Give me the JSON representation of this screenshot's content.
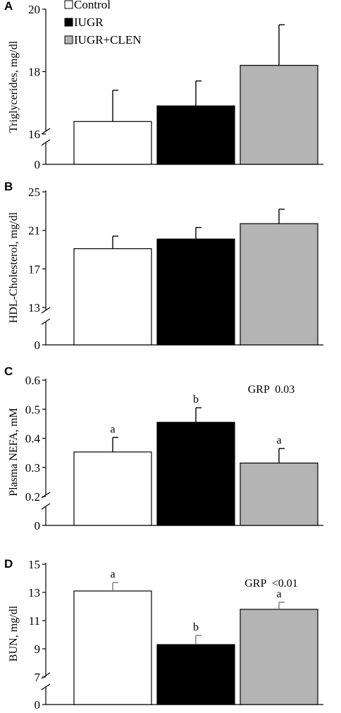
{
  "legend": [
    {
      "label": "Control",
      "color": "#ffffff"
    },
    {
      "label": "IUGR",
      "color": "#000000"
    },
    {
      "label": "IUGR+CLEN",
      "color": "#b4b4b4"
    }
  ],
  "chart_data": [
    {
      "type": "bar",
      "panel": "A",
      "ylabel": "Triglycerides, mg/dl",
      "axis_break": true,
      "ylim": [
        16,
        20
      ],
      "yticks": [
        "16",
        "18",
        "20"
      ],
      "zero_label": "0",
      "categories": [
        "Control",
        "IUGR",
        "IUGR+CLEN"
      ],
      "values": [
        16.4,
        16.9,
        18.2
      ],
      "errors": [
        1.0,
        0.8,
        1.3
      ],
      "letters": [
        "",
        "",
        ""
      ],
      "annotation": ""
    },
    {
      "type": "bar",
      "panel": "B",
      "ylabel": "HDL-Cholesterol, mg/dl",
      "axis_break": true,
      "ylim": [
        13,
        25
      ],
      "yticks": [
        "13",
        "17",
        "21",
        "25"
      ],
      "zero_label": "0",
      "categories": [
        "Control",
        "IUGR",
        "IUGR+CLEN"
      ],
      "values": [
        19.1,
        20.1,
        21.7
      ],
      "errors": [
        1.3,
        1.2,
        1.5
      ],
      "letters": [
        "",
        "",
        ""
      ],
      "annotation": ""
    },
    {
      "type": "bar",
      "panel": "C",
      "ylabel": "Plasma NEFA, mM",
      "axis_break": true,
      "ylim": [
        0.2,
        0.6
      ],
      "yticks": [
        "0.2",
        "0.3",
        "0.4",
        "0.5",
        "0.6"
      ],
      "zero_label": "0",
      "categories": [
        "Control",
        "IUGR",
        "IUGR+CLEN"
      ],
      "values": [
        0.353,
        0.455,
        0.315
      ],
      "errors": [
        0.05,
        0.05,
        0.05
      ],
      "letters": [
        "a",
        "b",
        "a"
      ],
      "annotation": "GRP  0.03"
    },
    {
      "type": "bar",
      "panel": "D",
      "ylabel": "BUN, mg/dl",
      "axis_break": true,
      "ylim": [
        7,
        15
      ],
      "yticks": [
        "7",
        "9",
        "11",
        "13",
        "15"
      ],
      "zero_label": "0",
      "categories": [
        "Control",
        "IUGR",
        "IUGR+CLEN"
      ],
      "values": [
        13.1,
        9.3,
        11.8
      ],
      "errors": [
        0.6,
        0.65,
        0.5
      ],
      "letters": [
        "a",
        "b",
        "a"
      ],
      "annotation": "GRP  <0.01"
    }
  ]
}
